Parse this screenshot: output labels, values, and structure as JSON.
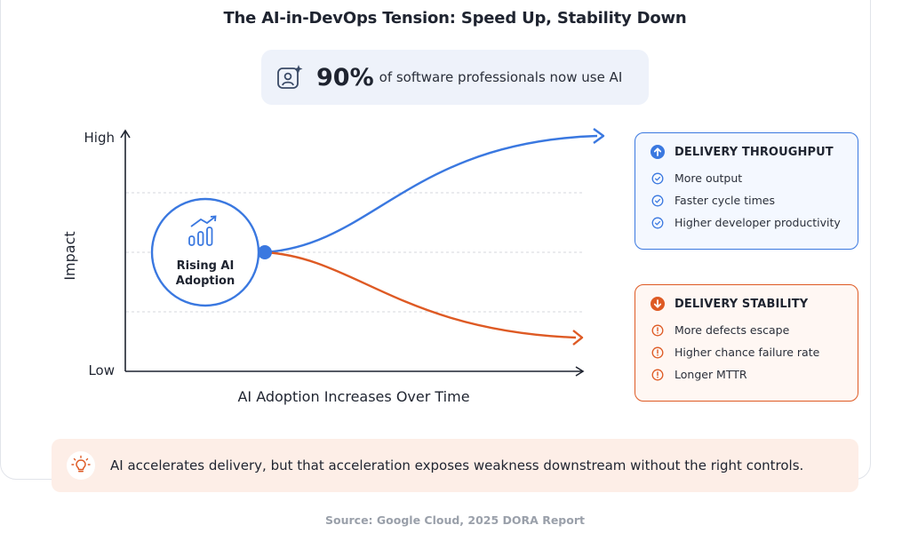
{
  "title": "The AI-in-DevOps Tension: Speed Up, Stability Down",
  "stat": {
    "value": "90%",
    "text": "of software professionals now use AI",
    "icon": "sparkle-user-icon"
  },
  "chart": {
    "y_axis_label": "Impact",
    "y_high_label": "High",
    "y_low_label": "Low",
    "x_axis_label": "AI Adoption Increases Over Time",
    "origin_label_line1": "Rising AI",
    "origin_label_line2": "Adoption",
    "origin_icon": "bar-chart-trend-icon",
    "upper_curve_color": "#3a78e0",
    "lower_curve_color": "#de5a24"
  },
  "throughput": {
    "title": "DELIVERY THROUGHPUT",
    "color": "#3a78e0",
    "icon": "arrow-up-circle-icon",
    "items": [
      {
        "label": "More output",
        "icon": "check-circle-icon"
      },
      {
        "label": "Faster cycle times",
        "icon": "check-circle-icon"
      },
      {
        "label": "Higher developer productivity",
        "icon": "check-circle-icon"
      }
    ]
  },
  "stability": {
    "title": "DELIVERY STABILITY",
    "color": "#de5a24",
    "icon": "arrow-down-circle-icon",
    "items": [
      {
        "label": "More defects escape",
        "icon": "alert-circle-icon"
      },
      {
        "label": "Higher chance failure rate",
        "icon": "alert-circle-icon"
      },
      {
        "label": "Longer MTTR",
        "icon": "alert-circle-icon"
      }
    ]
  },
  "callout": {
    "text": "AI accelerates delivery, but that acceleration exposes weakness downstream without the right controls.",
    "icon": "lightbulb-icon"
  },
  "source": "Source: Google Cloud, 2025 DORA Report"
}
